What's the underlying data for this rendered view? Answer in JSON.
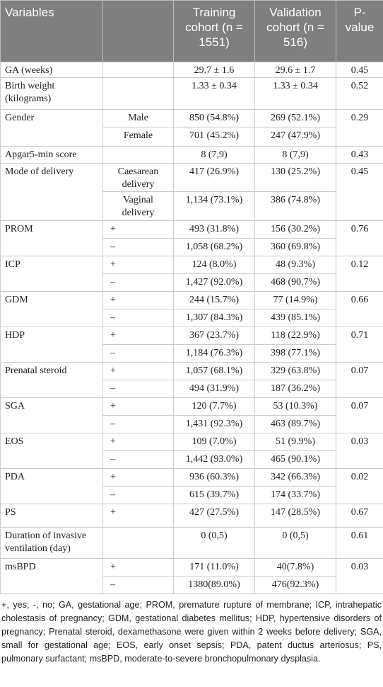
{
  "header": [
    "Variables",
    "Training cohort (n = 1551)",
    "Validation cohort (n = 516)",
    "P-value"
  ],
  "groups": [
    {
      "variable": "GA (weeks)",
      "p": "0.45",
      "rows": [
        {
          "training": "29.7 ± 1.6",
          "validation": "29.6 ± 1.7"
        }
      ]
    },
    {
      "variable": "Birth weight (kilograms)",
      "p": "0.52",
      "rows": [
        {
          "training": "1.33 ± 0.34",
          "validation": "1.33 ± 0.34"
        }
      ]
    },
    {
      "variable": "Gender",
      "p": "0.29",
      "rows": [
        {
          "sub": "Male",
          "training": "850 (54.8%)",
          "validation": "269 (52.1%)"
        },
        {
          "sub": "Female",
          "training": "701 (45.2%)",
          "validation": "247 (47.9%)"
        }
      ]
    },
    {
      "variable": "Apgar5-min score",
      "p": "0.43",
      "rows": [
        {
          "training": "8 (7,9)",
          "validation": "8 (7,9)"
        }
      ]
    },
    {
      "variable": "Mode of delivery",
      "p": "0.45",
      "rows": [
        {
          "sub": "Caesarean delivery",
          "training": "417 (26.9%)",
          "validation": "130 (25.2%)"
        },
        {
          "sub": "Vaginal delivery",
          "training": "1,134 (73.1%)",
          "validation": "386 (74.8%)"
        }
      ]
    },
    {
      "variable": "PROM",
      "p": "0.76",
      "rows": [
        {
          "sub": "+",
          "training": "493 (31.8%)",
          "validation": "156 (30.2%)"
        },
        {
          "sub": "–",
          "training": "1,058 (68.2%)",
          "validation": "360 (69.8%)"
        }
      ]
    },
    {
      "variable": "ICP",
      "p": "0.12",
      "rows": [
        {
          "sub": "+",
          "training": "124 (8.0%)",
          "validation": "48 (9.3%)"
        },
        {
          "sub": "–",
          "training": "1,427 (92.0%)",
          "validation": "468 (90.7%)"
        }
      ]
    },
    {
      "variable": "GDM",
      "p": "0.66",
      "rows": [
        {
          "sub": "+",
          "training": "244 (15.7%)",
          "validation": "77 (14.9%)"
        },
        {
          "sub": "–",
          "training": "1,307 (84.3%)",
          "validation": "439 (85.1%)"
        }
      ]
    },
    {
      "variable": "HDP",
      "p": "0.71",
      "rows": [
        {
          "sub": "+",
          "training": "367 (23.7%)",
          "validation": "118 (22.9%)"
        },
        {
          "sub": "–",
          "training": "1,184 (76.3%)",
          "validation": "398 (77.1%)"
        }
      ]
    },
    {
      "variable": "Prenatal steroid",
      "p": "0.07",
      "rows": [
        {
          "sub": "+",
          "training": "1,057 (68.1%)",
          "validation": "329 (63.8%)"
        },
        {
          "sub": "–",
          "training": "494 (31.9%)",
          "validation": "187 (36.2%)"
        }
      ]
    },
    {
      "variable": "SGA",
      "p": "0.07",
      "rows": [
        {
          "sub": "+",
          "training": "120 (7.7%)",
          "validation": "53 (10.3%)"
        },
        {
          "sub": "–",
          "training": "1,431 (92.3%)",
          "validation": "463 (89.7%)"
        }
      ]
    },
    {
      "variable": "EOS",
      "p": "0.03",
      "rows": [
        {
          "sub": "+",
          "training": "109 (7.0%)",
          "validation": "51 (9.9%)"
        },
        {
          "sub": "–",
          "training": "1,442 (93.0%)",
          "validation": "465 (90.1%)"
        }
      ]
    },
    {
      "variable": "PDA",
      "p": "0.02",
      "rows": [
        {
          "sub": "+",
          "training": "936 (60.3%)",
          "validation": "342 (66.3%)"
        },
        {
          "sub": "–",
          "training": "615 (39.7%)",
          "validation": "174 (33.7%)"
        }
      ]
    },
    {
      "variable": "PS",
      "p": "0.67",
      "rows": [
        {
          "sub": "+",
          "training": "427 (27.5%)",
          "validation": "147 (28.5%)"
        }
      ]
    },
    {
      "variable": "Duration of invasive ventilation (day)",
      "p": "0.61",
      "rows": [
        {
          "training": "0 (0,5)",
          "validation": "0 (0,5)"
        }
      ]
    },
    {
      "variable": "msBPD",
      "p": "0.03",
      "rows": [
        {
          "sub": "+",
          "training": "171 (11.0%)",
          "validation": "40(7.8%)"
        },
        {
          "sub": "–",
          "training": "1380(89.0%)",
          "validation": "476(92.3%)"
        }
      ]
    }
  ],
  "footnote": "+, yes; -, no; GA, gestational age; PROM, premature rupture of membrane; ICP, intrahepatic cholestasis of pregnancy; GDM, gestational diabetes mellitus; HDP, hypertensive disorders of pregnancy; Prenatal steroid, dexamethasone were given within 2 weeks before delivery; SGA, small for gestational age; EOS, early onset sepsis; PDA, patent ductus arteriosus; PS, pulmonary surfactant; msBPD, moderate-to-severe bronchopulmonary dysplasia."
}
